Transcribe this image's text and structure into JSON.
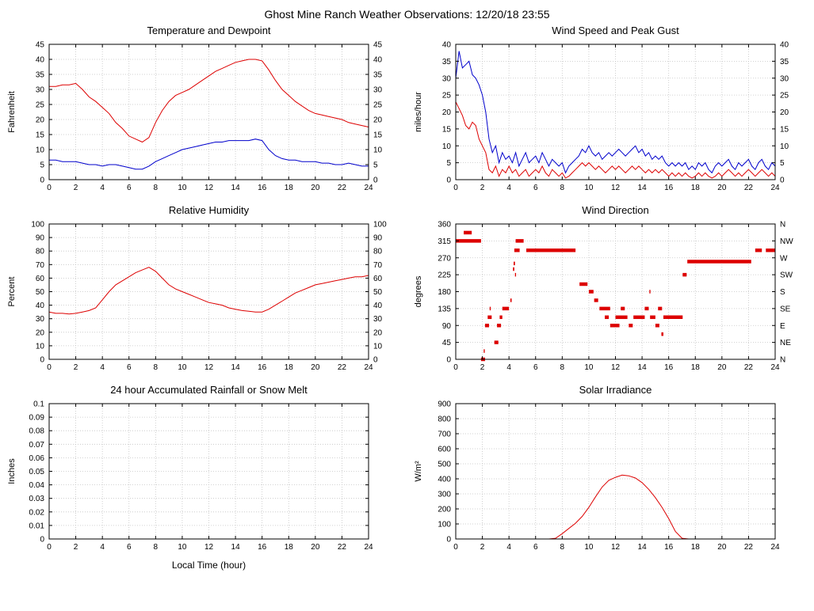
{
  "page_title": "Ghost Mine Ranch Weather Observations: 12/20/18 23:55",
  "colors": {
    "red_series": "#dd0000",
    "blue_series": "#0000cc",
    "grid": "#c4c4c4",
    "axis": "#000000"
  },
  "chart_data": [
    {
      "id": "temperature-dewpoint",
      "type": "line",
      "title": "Temperature and Dewpoint",
      "ylabel": "Fahrenheit",
      "xlim": [
        0,
        24
      ],
      "ylim": [
        0,
        45
      ],
      "xtick_step": 2,
      "ytick_step": 5,
      "mirror_y": true,
      "series": [
        {
          "name": "dewpoint",
          "color": "#0000cc",
          "x_start": 0,
          "x_step": 0.5,
          "values": [
            6.5,
            6.5,
            6,
            6,
            6,
            5.5,
            5,
            5,
            4.5,
            5,
            5,
            4.5,
            4,
            3.5,
            3.5,
            4.5,
            6,
            7,
            8,
            9,
            10,
            10.5,
            11,
            11.5,
            12,
            12.5,
            12.5,
            13,
            13,
            13,
            13,
            13.5,
            13,
            10,
            8,
            7,
            6.5,
            6.5,
            6,
            6,
            6,
            5.5,
            5.5,
            5,
            5,
            5.5,
            5,
            4.5,
            4.5
          ]
        },
        {
          "name": "temperature",
          "color": "#dd0000",
          "x_start": 0,
          "x_step": 0.5,
          "values": [
            31,
            31,
            31.5,
            31.5,
            32,
            30,
            27.5,
            26,
            24,
            22,
            19,
            17,
            14.5,
            13.5,
            12.5,
            14,
            19,
            23,
            26,
            28,
            29,
            30,
            31.5,
            33,
            34.5,
            36,
            37,
            38,
            39,
            39.5,
            40,
            40,
            39.5,
            36.5,
            33,
            30,
            28,
            26,
            24.5,
            23,
            22,
            21.5,
            21,
            20.5,
            20,
            19,
            18.5,
            18,
            17.5
          ]
        }
      ]
    },
    {
      "id": "wind-speed-gust",
      "type": "line",
      "title": "Wind Speed and Peak Gust",
      "ylabel": "miles/hour",
      "xlim": [
        0,
        24
      ],
      "ylim": [
        0,
        40
      ],
      "xtick_step": 2,
      "ytick_step": 5,
      "mirror_y": true,
      "series": [
        {
          "name": "peak-gust",
          "color": "#0000cc",
          "x_start": 0,
          "x_step": 0.25,
          "values": [
            30,
            38,
            33,
            34,
            35,
            31,
            30,
            28,
            25,
            20,
            12,
            8,
            10,
            5,
            8,
            6,
            7,
            5,
            8,
            4,
            6,
            8,
            5,
            6,
            7,
            5,
            8,
            6,
            4,
            6,
            5,
            4,
            5,
            2,
            4,
            5,
            6,
            7,
            9,
            8,
            10,
            8,
            7,
            8,
            6,
            7,
            8,
            7,
            8,
            9,
            8,
            7,
            8,
            9,
            10,
            8,
            9,
            7,
            8,
            6,
            7,
            6,
            7,
            5,
            4,
            5,
            4,
            5,
            4,
            5,
            3,
            4,
            3,
            5,
            4,
            5,
            3,
            2,
            4,
            5,
            4,
            5,
            6,
            4,
            3,
            5,
            4,
            5,
            6,
            4,
            3,
            5,
            6,
            4,
            3,
            5,
            4
          ]
        },
        {
          "name": "wind-speed",
          "color": "#dd0000",
          "x_start": 0,
          "x_step": 0.25,
          "values": [
            23,
            21,
            19,
            16,
            15,
            17,
            16,
            12,
            10,
            8,
            3,
            2,
            4,
            1,
            3,
            2,
            4,
            2,
            3,
            1,
            2,
            3,
            1,
            2,
            3,
            2,
            4,
            2,
            1,
            3,
            2,
            1,
            2,
            0.5,
            1,
            2,
            3,
            4,
            5,
            4,
            5,
            4,
            3,
            4,
            3,
            2,
            3,
            4,
            3,
            4,
            3,
            2,
            3,
            4,
            3,
            4,
            3,
            2,
            3,
            2,
            3,
            2,
            3,
            2,
            1,
            2,
            1,
            2,
            1,
            2,
            1,
            0.5,
            1,
            2,
            1,
            2,
            1,
            0.5,
            1,
            2,
            1,
            2,
            3,
            2,
            1,
            2,
            1,
            2,
            3,
            2,
            1,
            2,
            3,
            2,
            1,
            2,
            1
          ]
        }
      ]
    },
    {
      "id": "relative-humidity",
      "type": "line",
      "title": "Relative Humidity",
      "ylabel": "Percent",
      "xlim": [
        0,
        24
      ],
      "ylim": [
        0,
        100
      ],
      "xtick_step": 2,
      "ytick_step": 10,
      "mirror_y": true,
      "series": [
        {
          "name": "relative-humidity",
          "color": "#dd0000",
          "x_start": 0,
          "x_step": 0.5,
          "values": [
            35,
            34,
            34,
            33.5,
            34,
            35,
            36,
            38,
            44,
            50,
            55,
            58,
            61,
            64,
            66,
            68,
            65,
            60,
            55,
            52,
            50,
            48,
            46,
            44,
            42,
            41,
            40,
            38,
            37,
            36,
            35.5,
            35,
            35,
            37,
            40,
            43,
            46,
            49,
            51,
            53,
            55,
            56,
            57,
            58,
            59,
            60,
            61,
            61,
            62
          ]
        }
      ]
    },
    {
      "id": "wind-direction",
      "type": "segments",
      "title": "Wind Direction",
      "ylabel": "degrees",
      "xlim": [
        0,
        24
      ],
      "ylim": [
        0,
        360
      ],
      "xtick_step": 2,
      "ytick_step": 45,
      "right_labels": [
        "N",
        "NE",
        "E",
        "SE",
        "S",
        "SW",
        "W",
        "NW",
        "N"
      ],
      "series": [
        {
          "name": "wind-direction",
          "color": "#dd0000",
          "segments": [
            [
              0,
              1.9,
              315
            ],
            [
              0.6,
              1.2,
              337
            ],
            [
              1.9,
              2.2,
              0
            ],
            [
              2.1,
              2.15,
              22
            ],
            [
              2.2,
              2.5,
              90
            ],
            [
              2.4,
              2.7,
              112
            ],
            [
              2.55,
              2.6,
              135
            ],
            [
              2.9,
              3.2,
              45
            ],
            [
              3.1,
              3.4,
              90
            ],
            [
              3.3,
              3.5,
              112
            ],
            [
              3.5,
              4.0,
              135
            ],
            [
              4.1,
              4.2,
              157
            ],
            [
              4.3,
              4.4,
              240
            ],
            [
              4.35,
              4.45,
              255
            ],
            [
              4.45,
              4.5,
              225
            ],
            [
              4.4,
              4.8,
              290
            ],
            [
              4.5,
              5.1,
              315
            ],
            [
              5.3,
              9.0,
              290
            ],
            [
              9.3,
              9.9,
              200
            ],
            [
              10.0,
              10.35,
              180
            ],
            [
              10.4,
              10.7,
              157
            ],
            [
              10.8,
              11.6,
              135
            ],
            [
              11.2,
              11.5,
              112
            ],
            [
              11.6,
              12.3,
              90
            ],
            [
              12.0,
              12.9,
              112
            ],
            [
              12.4,
              12.7,
              135
            ],
            [
              13.0,
              13.3,
              90
            ],
            [
              13.35,
              14.2,
              112
            ],
            [
              14.2,
              14.5,
              135
            ],
            [
              14.55,
              14.6,
              180
            ],
            [
              14.6,
              15.0,
              112
            ],
            [
              15.0,
              15.3,
              90
            ],
            [
              15.2,
              15.5,
              135
            ],
            [
              15.45,
              15.6,
              67
            ],
            [
              15.6,
              17.05,
              112
            ],
            [
              17.05,
              17.35,
              225
            ],
            [
              17.4,
              22.2,
              260
            ],
            [
              22.5,
              23.0,
              290
            ],
            [
              23.3,
              24.0,
              290
            ]
          ]
        }
      ]
    },
    {
      "id": "rainfall",
      "type": "line",
      "title": "24 hour Accumulated Rainfall or Snow Melt",
      "ylabel": "Inches",
      "xlabel": "Local Time (hour)",
      "xlim": [
        0,
        24
      ],
      "ylim": [
        0,
        0.1
      ],
      "xtick_step": 2,
      "ytick_step": 0.01,
      "series": [
        {
          "name": "rainfall",
          "color": "#dd0000",
          "x_start": 0,
          "x_step": 24,
          "values": [
            0,
            0
          ]
        }
      ]
    },
    {
      "id": "solar-irradiance",
      "type": "line",
      "title": "Solar Irradiance",
      "ylabel": "W/m²",
      "xlim": [
        0,
        24
      ],
      "ylim": [
        0,
        900
      ],
      "xtick_step": 2,
      "ytick_step": 100,
      "series": [
        {
          "name": "solar-irradiance",
          "color": "#dd0000",
          "x_start": 0,
          "x_step": 0.5,
          "values": [
            0,
            0,
            0,
            0,
            0,
            0,
            0,
            0,
            0,
            0,
            0,
            0,
            0,
            0,
            0,
            5,
            35,
            70,
            105,
            150,
            210,
            280,
            345,
            390,
            410,
            425,
            420,
            405,
            375,
            330,
            275,
            210,
            135,
            50,
            5,
            0,
            0,
            0,
            0,
            0,
            0,
            0,
            0,
            0,
            0,
            0,
            0,
            0,
            0
          ]
        }
      ]
    }
  ]
}
